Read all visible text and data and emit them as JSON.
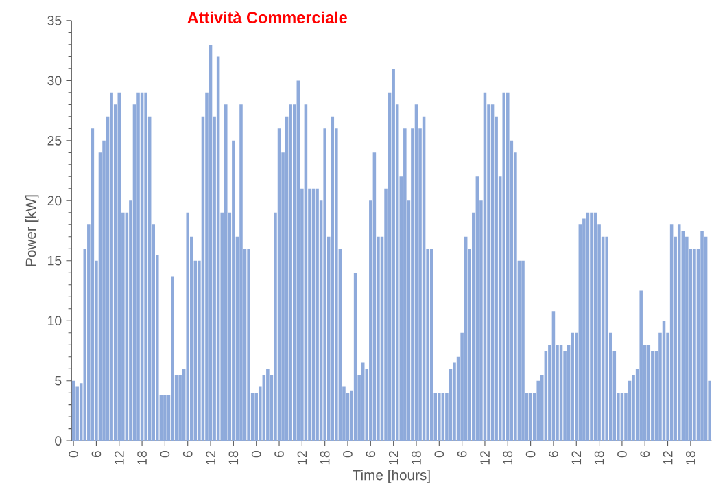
{
  "chart_data": {
    "type": "bar",
    "title": "Attività Commerciale",
    "xlabel": "Time [hours]",
    "ylabel": "Power [kW]",
    "categories": [
      "0",
      null,
      null,
      null,
      null,
      null,
      "6",
      null,
      null,
      null,
      null,
      null,
      "12",
      null,
      null,
      null,
      null,
      null,
      "18",
      null,
      null,
      null,
      null,
      null,
      "0",
      null,
      null,
      null,
      null,
      null,
      "6",
      null,
      null,
      null,
      null,
      null,
      "12",
      null,
      null,
      null,
      null,
      null,
      "18",
      null,
      null,
      null,
      null,
      null,
      "0",
      null,
      null,
      null,
      null,
      null,
      "6",
      null,
      null,
      null,
      null,
      null,
      "12",
      null,
      null,
      null,
      null,
      null,
      "18",
      null,
      null,
      null,
      null,
      null,
      "0",
      null,
      null,
      null,
      null,
      null,
      "6",
      null,
      null,
      null,
      null,
      null,
      "12",
      null,
      null,
      null,
      null,
      null,
      "18",
      null,
      null,
      null,
      null,
      null,
      "0",
      null,
      null,
      null,
      null,
      null,
      "6",
      null,
      null,
      null,
      null,
      null,
      "12",
      null,
      null,
      null,
      null,
      null,
      "18",
      null,
      null,
      null,
      null,
      null,
      "0",
      null,
      null,
      null,
      null,
      null,
      "6",
      null,
      null,
      null,
      null,
      null,
      "12",
      null,
      null,
      null,
      null,
      null,
      "18",
      null,
      null,
      null,
      null,
      null,
      "0",
      null,
      null,
      null,
      null,
      null,
      "6",
      null,
      null,
      null,
      null,
      null,
      "12",
      null,
      null,
      null,
      null,
      null,
      "18",
      null,
      null,
      null,
      null,
      null
    ],
    "values": [
      5,
      4.5,
      4.8,
      16,
      18,
      26,
      15,
      24,
      25,
      27,
      29,
      28,
      29,
      19,
      19,
      20,
      28,
      29,
      29,
      29,
      27,
      18,
      15.5,
      3.8,
      3.8,
      3.8,
      13.7,
      5.5,
      5.5,
      6,
      19,
      17,
      15,
      15,
      27,
      29,
      33,
      27,
      32,
      19,
      28,
      19,
      25,
      17,
      28,
      16,
      16,
      4,
      4,
      4.5,
      5.5,
      6,
      5.5,
      19,
      26,
      24,
      27,
      28,
      28,
      30,
      21,
      28,
      21,
      21,
      21,
      20,
      26,
      17,
      27,
      26,
      16,
      4.5,
      4,
      4.2,
      14,
      5.5,
      6.5,
      6,
      20,
      24,
      17,
      17,
      21,
      29,
      31,
      28,
      22,
      26,
      20,
      26,
      28,
      26,
      27,
      16,
      16,
      4,
      4,
      4,
      4,
      6,
      6.5,
      7,
      9,
      17,
      16,
      19,
      22,
      20,
      29,
      28,
      28,
      27,
      22,
      29,
      29,
      25,
      24,
      15,
      15,
      4,
      4,
      4,
      5,
      5.5,
      7.5,
      8,
      10.8,
      8,
      8,
      7.5,
      8,
      9,
      9,
      18,
      18.5,
      19,
      19,
      19,
      18,
      17,
      17,
      9,
      7.5,
      4,
      4,
      4,
      5,
      5.5,
      6,
      12.5,
      8,
      8,
      7.5,
      7.5,
      9,
      10,
      9,
      18,
      17,
      18,
      17.5,
      17,
      16,
      16,
      16,
      17.5,
      17,
      5
    ],
    "color": "#8eaadb",
    "ylim": [
      0,
      35
    ],
    "yticks": [
      0,
      5,
      10,
      15,
      20,
      25,
      30,
      35
    ]
  }
}
